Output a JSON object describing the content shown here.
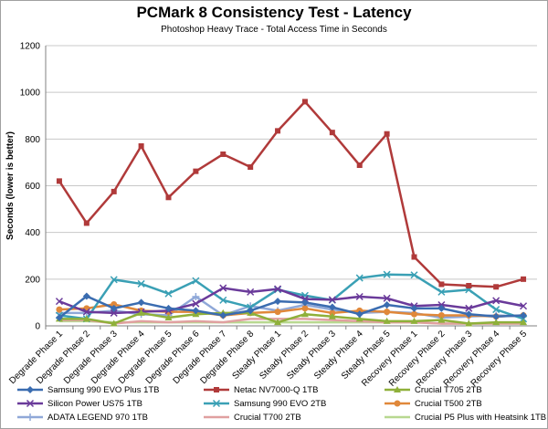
{
  "chart_data": {
    "type": "line",
    "title": "PCMark 8 Consistency Test - Latency",
    "subtitle": "Photoshop Heavy Trace - Total Access Time in Seconds",
    "ylabel": "Seconds (lower is better)",
    "xlabel": "",
    "ylim": [
      0,
      1200
    ],
    "yticks": [
      0,
      200,
      400,
      600,
      800,
      1000,
      1200
    ],
    "grid": true,
    "legend": "bottom",
    "categories": [
      "Degrade Phase 1",
      "Degrade Phase 2",
      "Degrade Phase 3",
      "Degrade Phase 4",
      "Degrade Phase 5",
      "Degrade Phase 6",
      "Degrade Phase 7",
      "Degrade Phase 8",
      "Steady Phase 1",
      "Steady Phase 2",
      "Steady Phase 3",
      "Steady Phase 4",
      "Steady Phase 5",
      "Recovery Phase 1",
      "Recovery Phase 2",
      "Recovery Phase 3",
      "Recovery Phase 4",
      "Recovery Phase 5"
    ],
    "series": [
      {
        "name": "Samsung 990 EVO Plus 1TB",
        "color": "#3a6cb0",
        "marker": "diamond",
        "values": [
          35,
          127,
          75,
          100,
          75,
          65,
          45,
          65,
          105,
          100,
          80,
          50,
          90,
          75,
          75,
          50,
          40,
          45
        ]
      },
      {
        "name": "Netac NV7000-Q 1TB",
        "color": "#b03a3a",
        "marker": "square",
        "values": [
          620,
          440,
          575,
          770,
          550,
          662,
          735,
          680,
          835,
          960,
          828,
          688,
          822,
          295,
          178,
          172,
          167,
          200
        ]
      },
      {
        "name": "Crucial T705 2TB",
        "color": "#8fb03a",
        "marker": "triangle",
        "values": [
          30,
          30,
          10,
          55,
          35,
          50,
          55,
          55,
          15,
          50,
          40,
          30,
          20,
          20,
          25,
          10,
          15,
          15
        ]
      },
      {
        "name": "Silicon Power US75 1TB",
        "color": "#6a3a9a",
        "marker": "x",
        "values": [
          105,
          60,
          55,
          60,
          65,
          95,
          162,
          145,
          158,
          115,
          112,
          125,
          118,
          85,
          90,
          75,
          108,
          85
        ]
      },
      {
        "name": "Samsung 990 EVO 2TB",
        "color": "#3aa0b5",
        "marker": "x",
        "values": [
          45,
          30,
          198,
          180,
          138,
          193,
          110,
          80,
          155,
          130,
          110,
          205,
          220,
          218,
          145,
          155,
          70,
          30
        ]
      },
      {
        "name": "Crucial T500 2TB",
        "color": "#e0883a",
        "marker": "circle",
        "values": [
          70,
          75,
          92,
          65,
          60,
          60,
          45,
          55,
          60,
          75,
          55,
          65,
          60,
          50,
          45,
          45,
          40,
          45
        ]
      },
      {
        "name": "ADATA LEGEND 970 1TB",
        "color": "#8fa8d8",
        "marker": "plus",
        "values": [
          55,
          55,
          65,
          50,
          45,
          125,
          45,
          85,
          65,
          90,
          70,
          55,
          60,
          55,
          35,
          40,
          45,
          40
        ]
      },
      {
        "name": "Crucial T700 2TB",
        "color": "#e0a0a0",
        "marker": "none",
        "values": [
          25,
          25,
          10,
          20,
          15,
          20,
          15,
          30,
          30,
          30,
          25,
          20,
          15,
          15,
          10,
          10,
          10,
          10
        ]
      },
      {
        "name": "Crucial P5 Plus with Heatsink 1TB",
        "color": "#b8d890",
        "marker": "none",
        "values": [
          20,
          20,
          15,
          15,
          15,
          15,
          15,
          15,
          15,
          15,
          15,
          15,
          15,
          15,
          10,
          10,
          10,
          10
        ]
      }
    ]
  }
}
